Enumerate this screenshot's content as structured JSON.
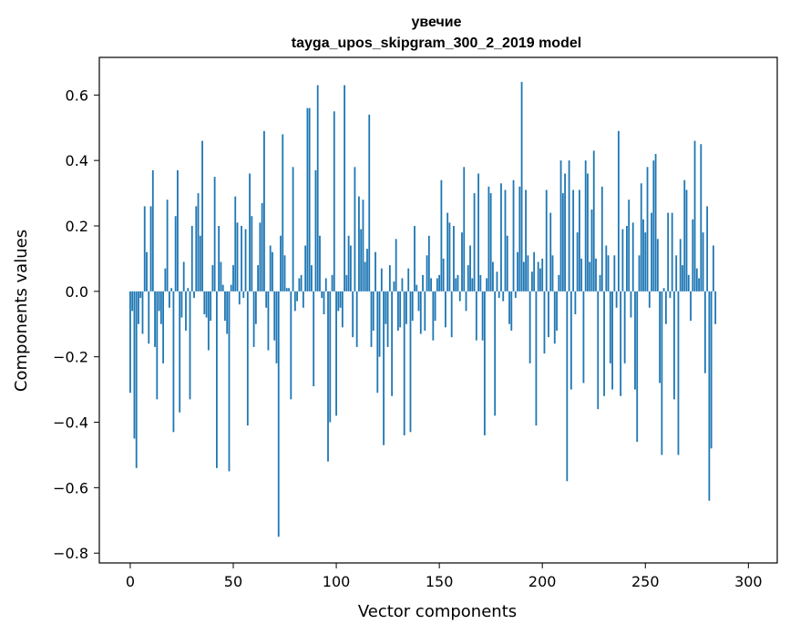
{
  "chart_data": {
    "type": "bar",
    "title": "увечие",
    "subtitle": "tayga_upos_skipgram_300_2_2019 model",
    "xlabel": "Vector components",
    "ylabel": "Components values",
    "xlim": [
      -15,
      314
    ],
    "ylim": [
      -0.83,
      0.715
    ],
    "xticks": [
      0,
      50,
      100,
      150,
      200,
      250,
      300
    ],
    "xtick_labels": [
      "0",
      "50",
      "100",
      "150",
      "200",
      "250",
      "300"
    ],
    "yticks": [
      -0.8,
      -0.6,
      -0.4,
      -0.2,
      0.0,
      0.2,
      0.4,
      0.6
    ],
    "ytick_labels": [
      "−0.8",
      "−0.6",
      "−0.4",
      "−0.2",
      "0.0",
      "0.2",
      "0.4",
      "0.6"
    ],
    "bar_color": "#1f77b4",
    "grid": false,
    "values": [
      -0.31,
      -0.06,
      -0.45,
      -0.54,
      -0.1,
      -0.02,
      -0.13,
      0.26,
      0.12,
      -0.16,
      0.26,
      0.37,
      -0.17,
      -0.33,
      -0.06,
      -0.1,
      -0.22,
      0.07,
      0.28,
      -0.05,
      0.01,
      -0.43,
      0.23,
      0.37,
      -0.37,
      -0.08,
      0.09,
      -0.12,
      0.01,
      -0.33,
      0.2,
      -0.02,
      0.26,
      0.3,
      0.17,
      0.46,
      -0.07,
      -0.08,
      -0.18,
      -0.09,
      0.08,
      0.35,
      -0.54,
      0.2,
      0.09,
      0.02,
      -0.09,
      -0.13,
      -0.55,
      0.02,
      0.08,
      0.29,
      0.21,
      -0.04,
      0.2,
      -0.02,
      0.19,
      -0.41,
      0.36,
      0.23,
      -0.17,
      -0.1,
      0.08,
      0.21,
      0.27,
      0.49,
      -0.05,
      -0.18,
      0.14,
      0.12,
      -0.15,
      -0.22,
      -0.75,
      0.17,
      0.48,
      0.11,
      0.01,
      0.01,
      -0.33,
      0.38,
      -0.06,
      -0.03,
      0.04,
      0.05,
      -0.05,
      0.14,
      0.56,
      0.56,
      0.08,
      -0.29,
      0.37,
      0.63,
      0.17,
      -0.02,
      -0.07,
      0.04,
      -0.52,
      -0.4,
      0.05,
      0.55,
      -0.38,
      -0.06,
      -0.05,
      -0.11,
      0.63,
      0.05,
      0.17,
      0.14,
      -0.14,
      0.38,
      -0.17,
      0.29,
      0.19,
      0.28,
      0.09,
      0.13,
      0.54,
      -0.17,
      -0.12,
      0.12,
      -0.31,
      -0.2,
      0.07,
      -0.47,
      -0.1,
      -0.17,
      0.08,
      -0.32,
      0.03,
      0.16,
      -0.12,
      -0.11,
      0.04,
      -0.44,
      -0.1,
      0.07,
      -0.43,
      -0.09,
      0.2,
      0.02,
      -0.06,
      -0.13,
      0.05,
      -0.12,
      0.11,
      0.17,
      0.04,
      -0.15,
      -0.09,
      0.04,
      0.05,
      0.34,
      0.1,
      -0.11,
      0.24,
      0.21,
      -0.14,
      0.2,
      0.04,
      0.05,
      -0.03,
      0.18,
      0.38,
      -0.06,
      0.08,
      0.14,
      0.04,
      0.3,
      -0.15,
      0.36,
      0.05,
      -0.15,
      -0.44,
      0.04,
      0.32,
      0.3,
      0.09,
      -0.38,
      0.06,
      -0.02,
      0.33,
      -0.03,
      0.31,
      0.17,
      -0.1,
      -0.12,
      0.34,
      -0.02,
      0.12,
      0.32,
      0.64,
      0.09,
      0.31,
      0.11,
      -0.22,
      0.06,
      0.12,
      -0.41,
      0.09,
      0.07,
      0.1,
      -0.19,
      0.31,
      -0.14,
      0.24,
      0.11,
      -0.16,
      -0.12,
      0.05,
      0.4,
      0.3,
      0.36,
      -0.58,
      0.4,
      -0.3,
      0.31,
      -0.07,
      0.18,
      0.31,
      0.1,
      -0.28,
      0.4,
      0.36,
      0.09,
      0.25,
      0.43,
      0.1,
      -0.36,
      0.05,
      0.32,
      -0.32,
      0.14,
      0.11,
      -0.22,
      -0.3,
      0.11,
      -0.05,
      0.49,
      -0.32,
      0.19,
      -0.22,
      0.2,
      0.28,
      -0.08,
      0.21,
      -0.3,
      -0.46,
      0.11,
      0.33,
      0.22,
      0.18,
      0.38,
      -0.05,
      0.24,
      0.4,
      0.42,
      0.16,
      -0.28,
      -0.5,
      0.01,
      -0.1,
      0.24,
      -0.02,
      0.24,
      -0.33,
      0.11,
      -0.5,
      0.16,
      0.08,
      0.34,
      0.31,
      0.05,
      -0.09,
      0.22,
      0.46,
      0.07,
      0.04,
      0.45,
      0.18,
      -0.25,
      0.26,
      -0.64,
      -0.48,
      0.14,
      -0.1
    ]
  }
}
